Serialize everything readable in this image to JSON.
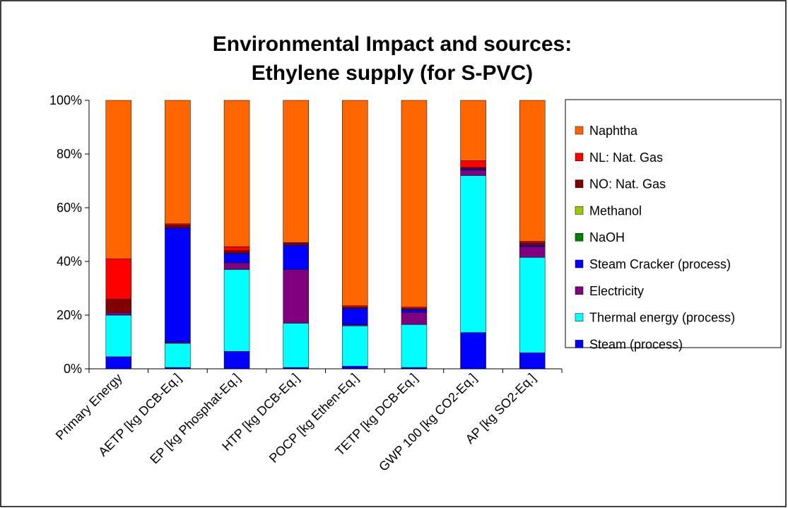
{
  "chart_data": {
    "type": "stacked_bar",
    "title": [
      "Environmental Impact and sources:",
      "Ethylene supply (for S-PVC)"
    ],
    "categories": [
      "Primary Energy",
      "AETP [kg DCB-Eq.]",
      "EP [kg Phosphat-Eq.]",
      "HTP [kg DCB-Eq.]",
      "POCP [kg Ethen-Eq.]",
      "TETP [kg DCB-Eq.]",
      "GWP 100 [kg CO2-Eq.]",
      "AP [kg SO2-Eq.]"
    ],
    "series": [
      {
        "name": "Steam (process)",
        "color": "#0000ff",
        "values": [
          4.5,
          0.5,
          6.5,
          0.5,
          1,
          0.5,
          13.5,
          6
        ]
      },
      {
        "name": "Thermal energy (process)",
        "color": "#00ffff",
        "values": [
          15.5,
          9,
          30.5,
          16.5,
          15,
          16,
          58.5,
          35.5
        ]
      },
      {
        "name": "Electricity",
        "color": "#800080",
        "values": [
          1,
          0.5,
          2.5,
          20,
          0.5,
          4.5,
          2,
          4
        ]
      },
      {
        "name": "Steam Cracker (process)",
        "color": "#0000ff",
        "values": [
          0,
          42.5,
          3.5,
          9,
          6,
          1,
          0.5,
          0.5
        ]
      },
      {
        "name": "NaOH",
        "color": "#008000",
        "values": [
          0,
          0,
          0,
          0,
          0,
          0,
          0,
          0
        ]
      },
      {
        "name": "Methanol",
        "color": "#99cc00",
        "values": [
          0,
          0,
          0,
          0,
          0,
          0,
          0,
          0
        ]
      },
      {
        "name": "NO: Nat. Gas",
        "color": "#800000",
        "values": [
          5,
          1,
          1,
          1,
          0.5,
          0.5,
          0.5,
          1
        ]
      },
      {
        "name": "NL: Nat. Gas",
        "color": "#ff0000",
        "values": [
          15,
          0.5,
          1.5,
          0,
          0.5,
          0.5,
          2.5,
          0.5
        ]
      },
      {
        "name": "Naphtha",
        "color": "#ff6600",
        "values": [
          59,
          46,
          54.5,
          53,
          76.5,
          77,
          22.5,
          52.5
        ]
      }
    ],
    "ylim": [
      0,
      100
    ],
    "yticks": [
      {
        "value": 0,
        "label": "0%"
      },
      {
        "value": 20,
        "label": "20%"
      },
      {
        "value": 40,
        "label": "40%"
      },
      {
        "value": 60,
        "label": "60%"
      },
      {
        "value": 80,
        "label": "80%"
      },
      {
        "value": 100,
        "label": "100%"
      }
    ],
    "legend": "right"
  }
}
